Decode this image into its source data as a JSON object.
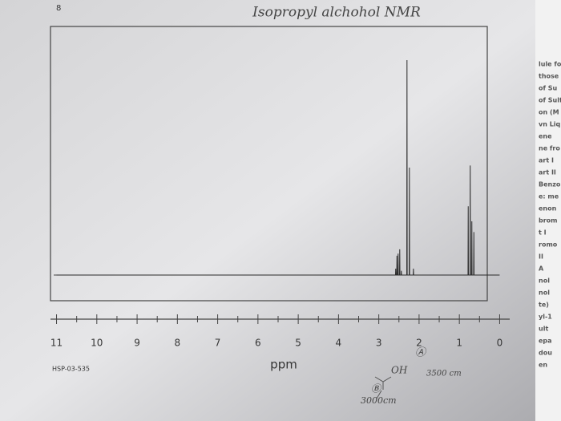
{
  "page_mark": "8",
  "chart_data": {
    "type": "line",
    "title": "Isopropyl alchohol NMR",
    "xlabel": "ppm",
    "code": "HSP-03-535",
    "annotations": [
      "Ⓐ",
      "OH",
      "3500 cm",
      "Ⓑ",
      "3000cm"
    ],
    "x": [
      11,
      2.585,
      2.58,
      2.575,
      2.555,
      2.55,
      2.545,
      2.525,
      2.52,
      2.515,
      2.485,
      2.48,
      2.475,
      2.445,
      2.44,
      2.435,
      2.305,
      2.3,
      2.295,
      2.245,
      2.24,
      2.235,
      2.145,
      2.14,
      2.135,
      0.785,
      0.78,
      0.775,
      0.735,
      0.73,
      0.725,
      0.695,
      0.69,
      0.685,
      0.645,
      0.64,
      0.635,
      0
    ],
    "series": [
      {
        "name": "spectrum",
        "color": "#2a2a2a",
        "values": [
          0,
          0,
          3,
          0,
          0,
          9,
          0,
          0,
          10,
          0,
          0,
          12,
          0,
          0,
          2,
          0,
          0,
          100,
          0,
          0,
          50,
          0,
          0,
          3,
          0,
          0,
          32,
          0,
          0,
          51,
          0,
          0,
          25,
          0,
          0,
          20,
          0,
          0
        ]
      }
    ],
    "xlim": [
      11.15,
      -0.25
    ],
    "xticks": [
      11,
      10,
      9,
      8,
      7,
      6,
      5,
      4,
      3,
      2,
      1,
      0
    ],
    "ylim": [
      0,
      100
    ]
  },
  "side_text": [
    "lule fo",
    "those",
    "of Su",
    "of Sulf",
    "on (M",
    "vn Liq",
    "ene",
    "ne fro",
    "art I",
    "art II",
    "Benzo",
    "e: me",
    "enon",
    "brom",
    "t I",
    "romo",
    "II",
    "A",
    "nol",
    "nol",
    "te)",
    "yl-1",
    "ult",
    "epa",
    "dou",
    "en"
  ]
}
